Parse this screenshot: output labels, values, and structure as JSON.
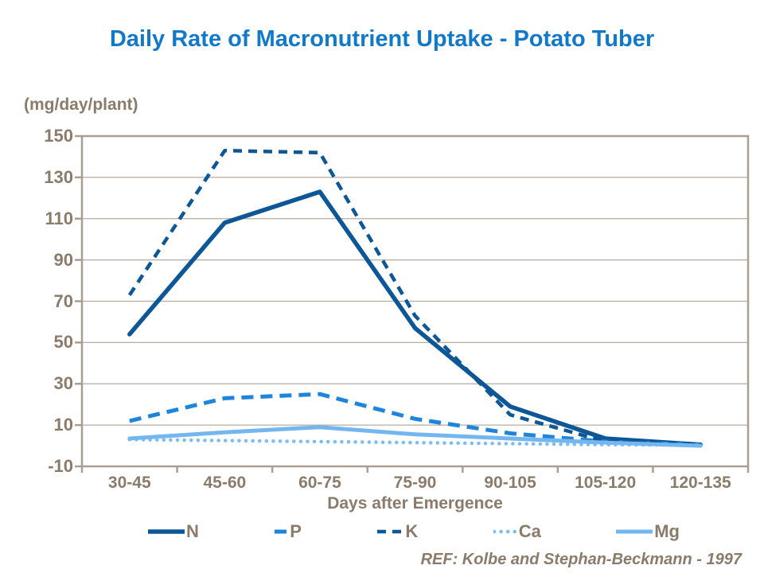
{
  "ref_note": "REF: Kolbe and Stephan-Beckmann - 1997",
  "colors": {
    "title_blue": "#1278C8",
    "dark_navy": "#0E5796",
    "medium_blue": "#1E85DB",
    "light_blue": "#74B7F0",
    "lighter_blue": "#7CBDF2",
    "label_taupe": "#8B7B6B",
    "gridline_taupe": "#B5AB9E",
    "axis_taupe": "#A89E91"
  },
  "chart_data": {
    "type": "line",
    "title": "Daily Rate of Macronutrient Uptake - Potato Tuber",
    "unit_label": "(mg/day/plant)",
    "xlabel": "Days after Emergence",
    "categories": [
      "30-45",
      "45-60",
      "60-75",
      "75-90",
      "90-105",
      "105-120",
      "120-135"
    ],
    "ylim": [
      -10,
      150
    ],
    "y_ticks": [
      150,
      130,
      110,
      90,
      70,
      50,
      30,
      10,
      -10
    ],
    "grid": true,
    "legend_position": "bottom",
    "series": [
      {
        "name": "N",
        "color": "#0E5796",
        "style": "solid",
        "values": [
          54,
          108,
          123,
          57,
          19,
          3.5,
          0.5
        ]
      },
      {
        "name": "P",
        "color": "#1E85DB",
        "style": "dashed",
        "values": [
          12,
          23,
          25,
          13,
          6,
          2,
          0.5
        ]
      },
      {
        "name": "K",
        "color": "#0E5796",
        "style": "dashed",
        "values": [
          73,
          143,
          142,
          63,
          15,
          2,
          0.5
        ]
      },
      {
        "name": "Ca",
        "color": "#7CBDF2",
        "style": "dotted",
        "values": [
          3,
          2.5,
          2,
          1.5,
          1,
          0.5,
          0.2
        ]
      },
      {
        "name": "Mg",
        "color": "#74B7F0",
        "style": "solid",
        "values": [
          3.5,
          6.5,
          9,
          5.5,
          3.5,
          1.5,
          0
        ]
      }
    ]
  }
}
